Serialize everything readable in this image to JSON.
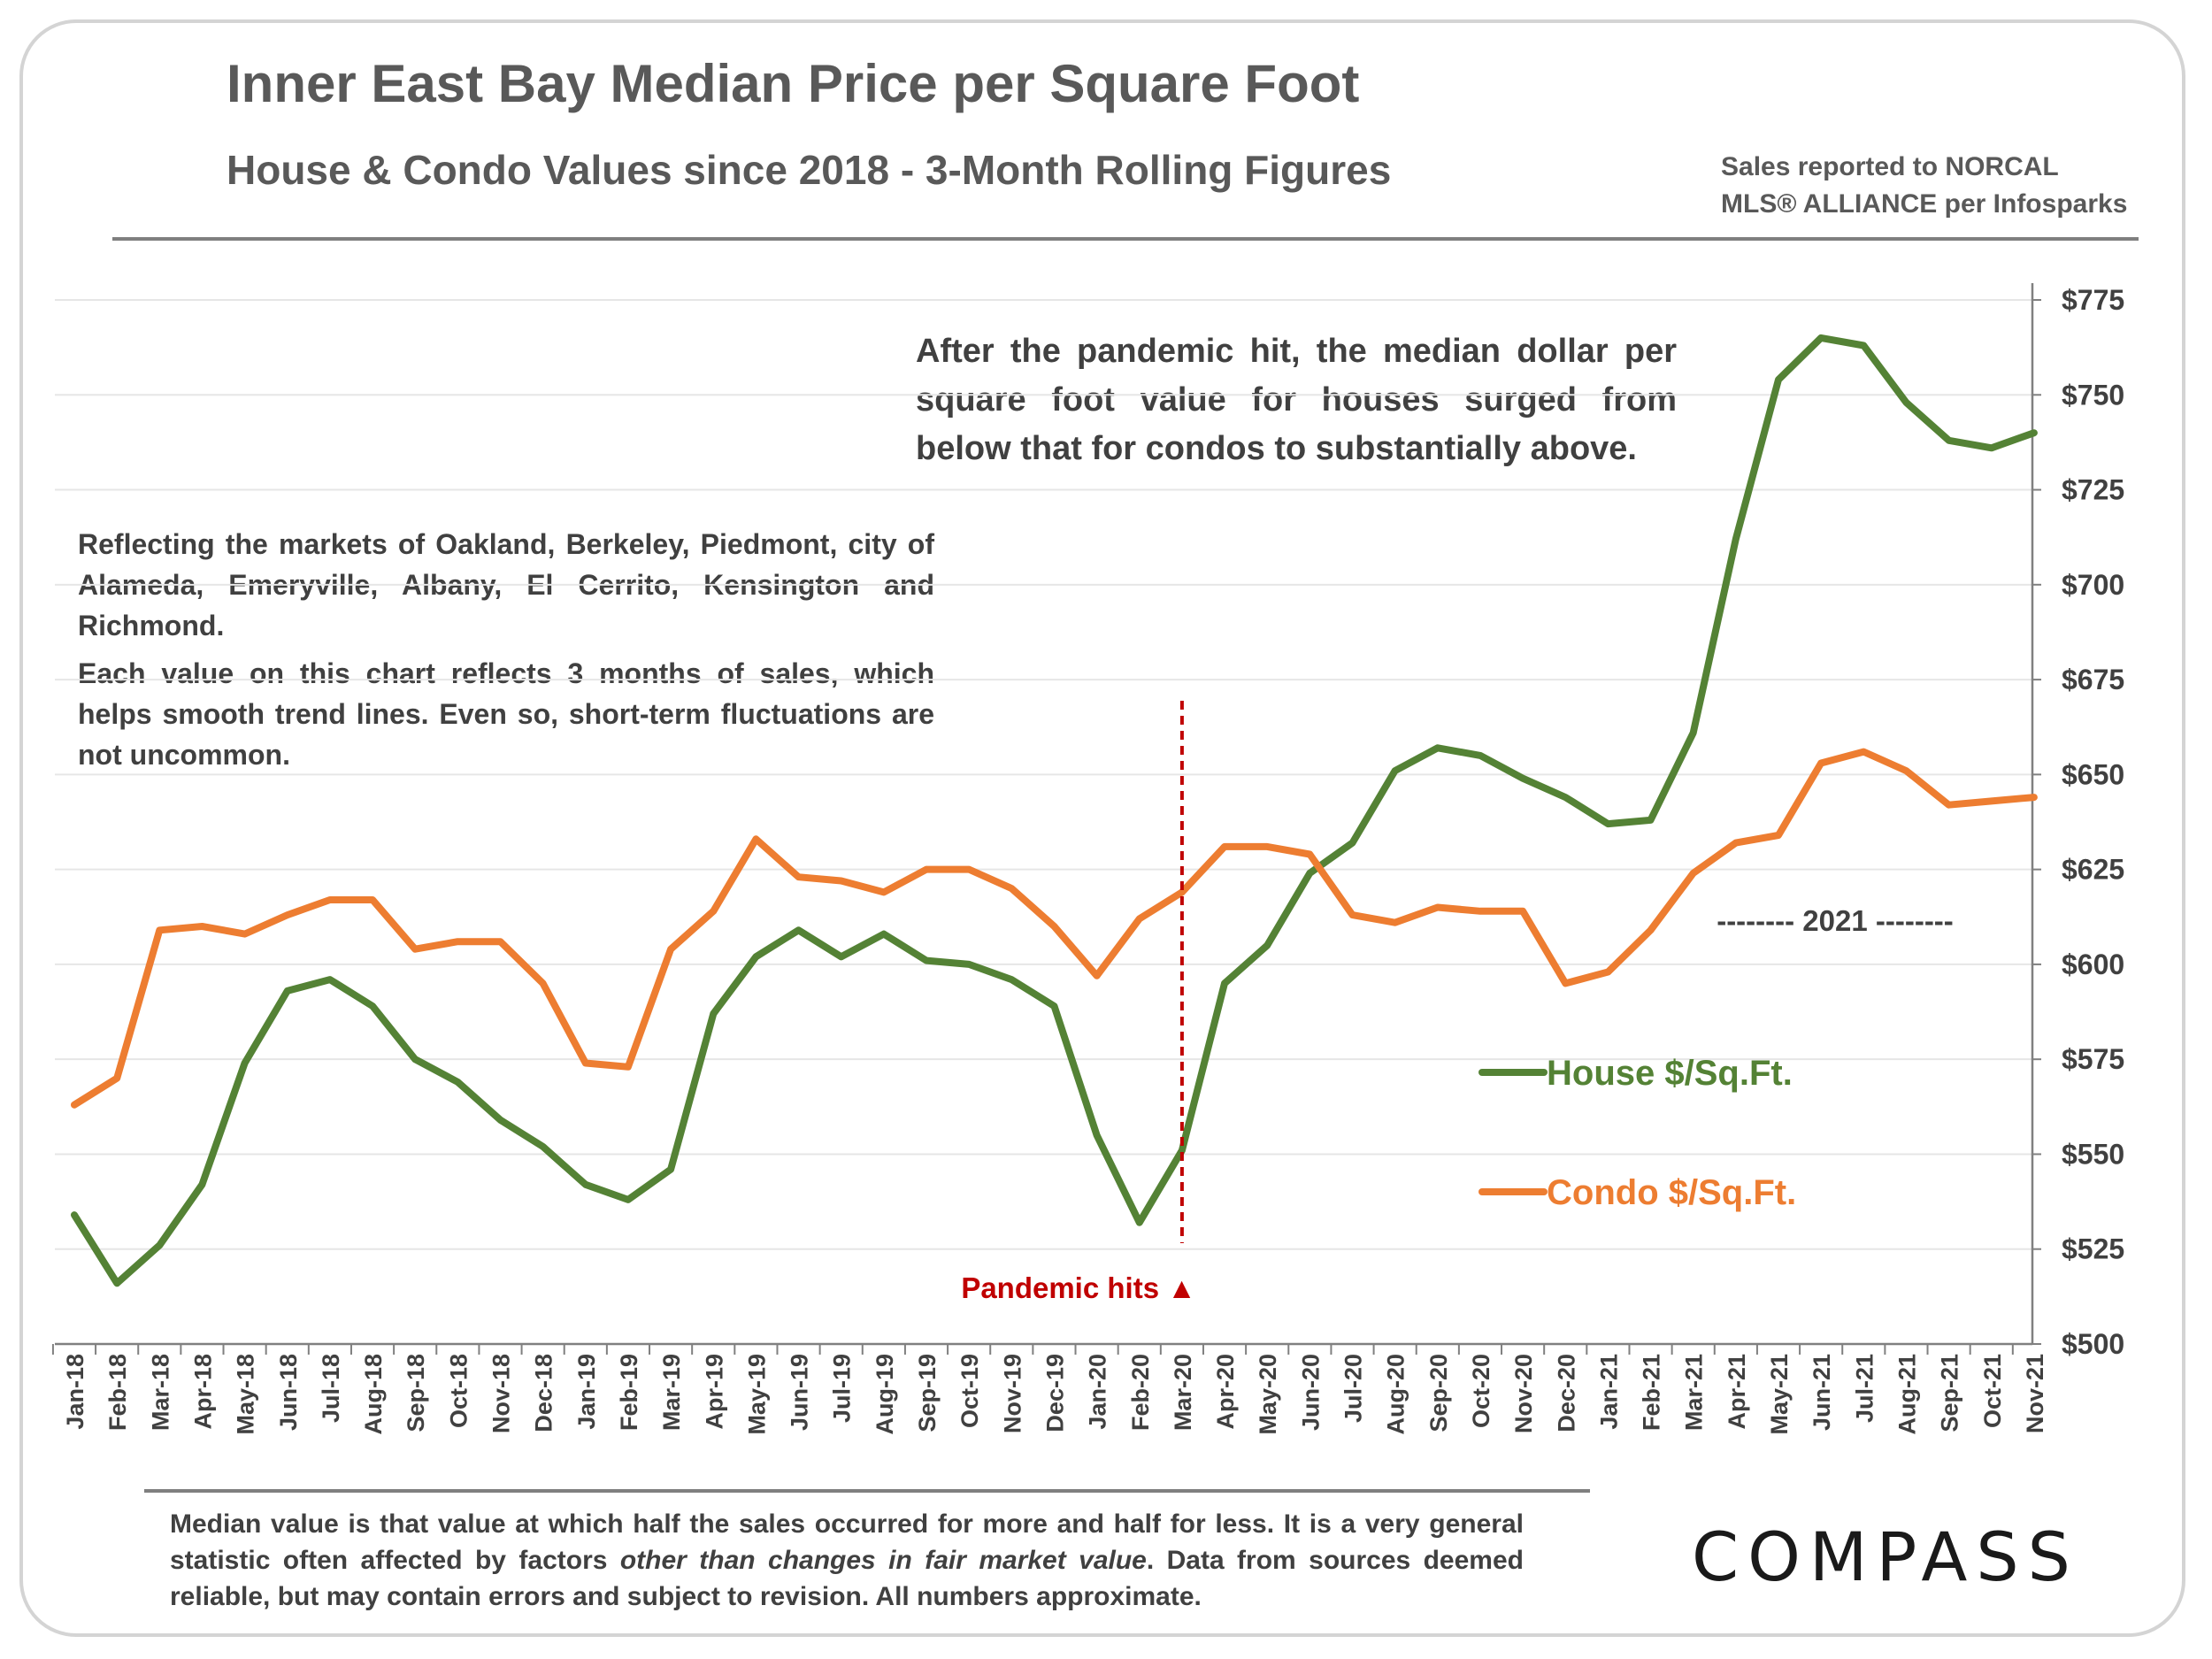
{
  "header": {
    "title": "Inner East Bay Median Price per Square Foot",
    "subtitle": "House & Condo Values since 2018 - 3-Month Rolling Figures",
    "source_line1": "Sales reported to NORCAL",
    "source_line2": "MLS® ALLIANCE per Infosparks"
  },
  "annotations": {
    "pandemic_summary": "After the pandemic hit, the median dollar per square foot value for houses surged from below that for condos to substantially above.",
    "markets": "Reflecting the markets of Oakland, Berkeley, Piedmont, city of Alameda, Emeryville, Albany, El Cerrito, Kensington and Richmond.",
    "smoothing": "Each value on this chart reflects 3 months of sales, which helps smooth trend lines. Even so, short-term fluctuations are not uncommon.",
    "pandemic_marker": "Pandemic hits ▲",
    "year_bracket": "-------- 2021 --------"
  },
  "footer": {
    "note_part1": "Median value is that value at which half the sales occurred for more and half for less. It is a very general statistic often affected by factors ",
    "note_italic": "other than changes in fair market value",
    "note_part2": ". Data from sources deemed reliable, but may contain errors and subject to revision. All numbers approximate.",
    "logo": "COMPASS"
  },
  "colors": {
    "house": "#548235",
    "condo": "#ed7d31",
    "pandemic": "#c00000",
    "grid": "#e6e6e6",
    "axis": "#808080"
  },
  "chart_data": {
    "type": "line",
    "categories": [
      "Jan-18",
      "Feb-18",
      "Mar-18",
      "Apr-18",
      "May-18",
      "Jun-18",
      "Jul-18",
      "Aug-18",
      "Sep-18",
      "Oct-18",
      "Nov-18",
      "Dec-18",
      "Jan-19",
      "Feb-19",
      "Mar-19",
      "Apr-19",
      "May-19",
      "Jun-19",
      "Jul-19",
      "Aug-19",
      "Sep-19",
      "Oct-19",
      "Nov-19",
      "Dec-19",
      "Jan-20",
      "Feb-20",
      "Mar-20",
      "Apr-20",
      "May-20",
      "Jun-20",
      "Jul-20",
      "Aug-20",
      "Sep-20",
      "Oct-20",
      "Nov-20",
      "Dec-20",
      "Jan-21",
      "Feb-21",
      "Mar-21",
      "Apr-21",
      "May-21",
      "Jun-21",
      "Jul-21",
      "Aug-21",
      "Sep-21",
      "Oct-21",
      "Nov-21"
    ],
    "series": [
      {
        "name": "House $/Sq.Ft.",
        "values": [
          534,
          516,
          526,
          542,
          574,
          593,
          596,
          589,
          575,
          569,
          559,
          552,
          542,
          538,
          546,
          587,
          602,
          609,
          602,
          608,
          601,
          600,
          596,
          589,
          555,
          532,
          551,
          595,
          605,
          624,
          632,
          651,
          657,
          655,
          649,
          644,
          637,
          638,
          661,
          712,
          754,
          765,
          763,
          748,
          738,
          736,
          740
        ]
      },
      {
        "name": "Condo $/Sq.Ft.",
        "values": [
          563,
          570,
          609,
          610,
          608,
          613,
          617,
          617,
          604,
          606,
          606,
          595,
          574,
          573,
          604,
          614,
          633,
          623,
          622,
          619,
          625,
          625,
          620,
          610,
          597,
          612,
          619,
          631,
          631,
          629,
          613,
          611,
          615,
          614,
          614,
          595,
          598,
          609,
          624,
          632,
          634,
          653,
          656,
          651,
          642,
          643,
          644
        ]
      }
    ],
    "y_axis": {
      "min": 500,
      "max": 775,
      "step": 25,
      "position": "right",
      "prefix": "$"
    },
    "pandemic_marker_category": "Mar-20",
    "grid": true,
    "legend_position": "right"
  }
}
